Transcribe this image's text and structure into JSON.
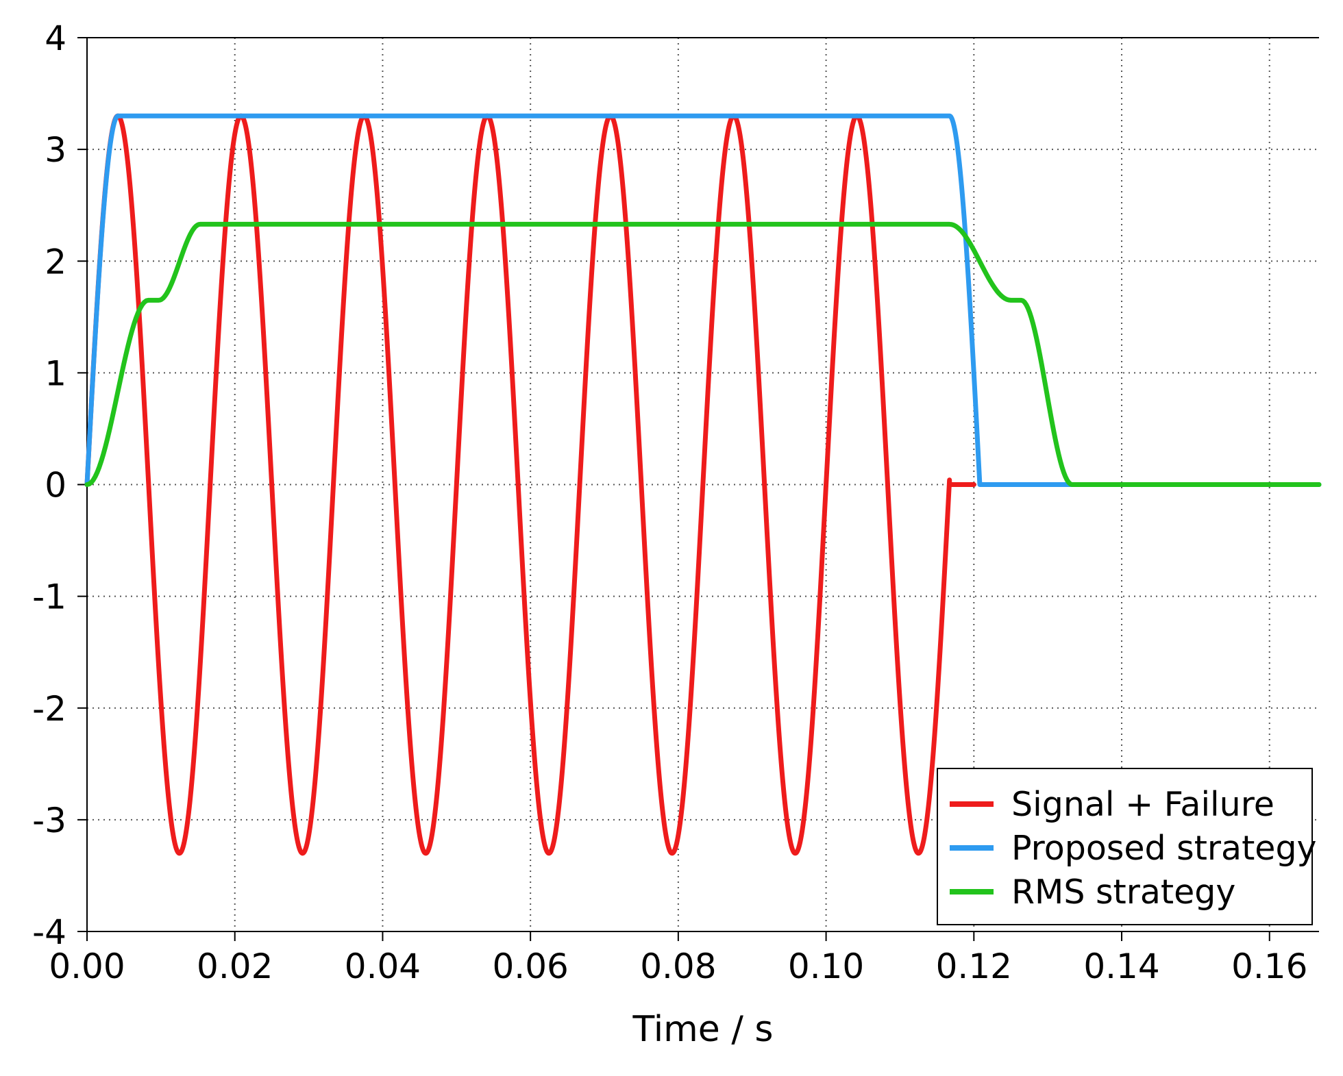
{
  "chart_data": {
    "type": "line",
    "title": "",
    "xlabel": "Time / s",
    "ylabel": "",
    "xlim": [
      0,
      0.1667
    ],
    "ylim": [
      -4,
      4
    ],
    "x_ticks": [
      "0.00",
      "0.02",
      "0.04",
      "0.06",
      "0.08",
      "0.10",
      "0.12",
      "0.14",
      "0.16"
    ],
    "x_tick_values": [
      0,
      0.02,
      0.04,
      0.06,
      0.08,
      0.1,
      0.12,
      0.14,
      0.16
    ],
    "y_ticks": [
      "4",
      "3",
      "2",
      "1",
      "0",
      "-1",
      "-2",
      "-3",
      "-4"
    ],
    "y_tick_values": [
      4,
      3,
      2,
      1,
      0,
      -1,
      -2,
      -3,
      -4
    ],
    "grid": true,
    "legend_position": "bottom-right",
    "series": [
      {
        "name": "Signal + Failure",
        "color": "#ee1c1c",
        "description_of_shape": "sinusoid amplitude 3.3, frequency 60 Hz, cosine-like starting at 0 rising to peak 3.3 at 0.0042 s, until failure at 0.1167 s, then 0",
        "amplitude": 3.3,
        "frequency_hz": 60,
        "failure_time": 0.1167,
        "x": [
          0,
          0.0042,
          0.0125,
          0.0208,
          0.0292,
          0.0375,
          0.0458,
          0.0542,
          0.0625,
          0.0708,
          0.0792,
          0.0875,
          0.0958,
          0.1042,
          0.1125,
          0.1167,
          0.1167,
          0.12
        ],
        "y": [
          0,
          3.3,
          -3.3,
          3.3,
          -3.3,
          3.3,
          -3.3,
          3.3,
          -3.3,
          3.3,
          -3.3,
          3.3,
          -3.3,
          3.3,
          -3.3,
          -0.0,
          0,
          0
        ]
      },
      {
        "name": "Proposed strategy",
        "color": "#2e9bf0",
        "x": [
          0,
          0.0042,
          0.1167,
          0.1208,
          0.1667
        ],
        "y": [
          0,
          3.3,
          3.3,
          0,
          0
        ]
      },
      {
        "name": "RMS strategy",
        "color": "#22c31c",
        "x": [
          0,
          0.0083,
          0.0097,
          0.0153,
          0.1167,
          0.125,
          0.1264,
          0.1333,
          0.1667
        ],
        "y": [
          0,
          1.65,
          1.65,
          2.33,
          2.33,
          1.65,
          1.65,
          0,
          0
        ]
      }
    ]
  }
}
